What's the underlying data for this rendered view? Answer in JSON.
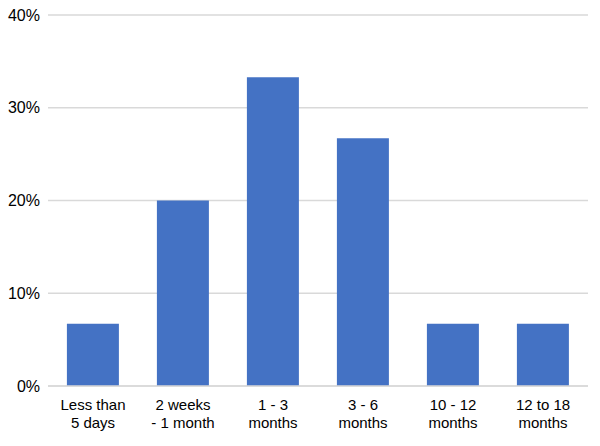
{
  "chart_data": {
    "type": "bar",
    "categories": [
      "Less than 5 days",
      "2 weeks - 1 month",
      "1 - 3 months",
      "3 - 6 months",
      "10 - 12 months",
      "12 to 18 months"
    ],
    "values": [
      6.7,
      20,
      33.3,
      26.7,
      6.7,
      6.7
    ],
    "color": "#4472c4",
    "ylim": [
      0,
      40
    ],
    "yticks": [
      {
        "value": 0,
        "label": "0%"
      },
      {
        "value": 10,
        "label": "10%"
      },
      {
        "value": 20,
        "label": "20%"
      },
      {
        "value": 30,
        "label": "30%"
      },
      {
        "value": 40,
        "label": "40%"
      }
    ],
    "grid": true
  }
}
